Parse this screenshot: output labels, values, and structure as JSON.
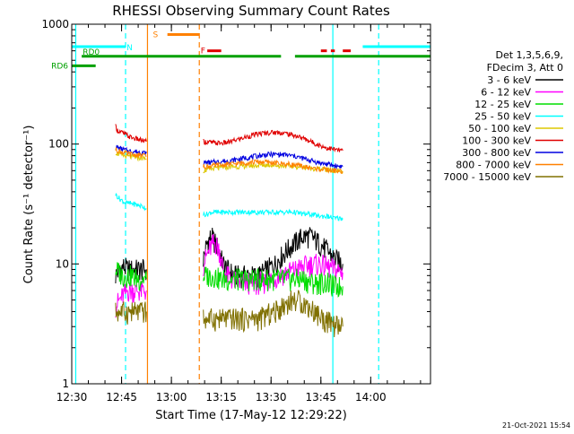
{
  "colors": {
    "background": "#ffffff",
    "axes": "#000000",
    "channels": [
      "#000000",
      "#ff00ff",
      "#00dd00",
      "#00ffff",
      "#ddc800",
      "#e00000",
      "#0000e0",
      "#ff8000",
      "#807000"
    ],
    "attenuator_flag": "#00a000",
    "n_marker": "#00ffff",
    "s_marker": "#ff8000",
    "f_marker": "#e00000",
    "date_stamp": "#000000"
  },
  "chart_data": {
    "type": "line",
    "title": "RHESSI Observing Summary Count Rates",
    "xlabel": "Start Time (17-May-12 12:29:22)",
    "ylabel": "Count Rate (s⁻¹ detector⁻¹)",
    "yscale": "log",
    "ylim": [
      1,
      1000
    ],
    "xlim": [
      12.5,
      14.3
    ],
    "xtick_values": [
      12.5,
      12.75,
      13.0,
      13.25,
      13.5,
      13.75,
      14.0
    ],
    "xtick_labels": [
      "12:30",
      "12:45",
      "13:00",
      "13:15",
      "13:30",
      "13:45",
      "14:00"
    ],
    "ytick_values": [
      1,
      10,
      100,
      1000
    ],
    "ytick_labels": [
      "1",
      "10",
      "100",
      "1000"
    ],
    "legend_header": [
      "Det 1,3,5,6,9,",
      "FDecim 3, Att 0"
    ],
    "legend_position": "right",
    "date_stamp": "21-Oct-2021 15:54",
    "flag_labels": {
      "rd0": "RD0",
      "rd6": "RD6",
      "n": "N",
      "s": "S",
      "f": "F"
    },
    "flags": {
      "rd0": {
        "y": 540,
        "segments": [
          [
            12.55,
            13.55
          ],
          [
            13.62,
            14.3
          ]
        ]
      },
      "rd6": {
        "y": 450,
        "segments": [
          [
            12.5,
            12.62
          ]
        ]
      },
      "n": {
        "y": 650,
        "segments": [
          [
            12.5,
            12.77
          ],
          [
            13.96,
            14.3
          ]
        ]
      },
      "s": {
        "y": 820,
        "segments": [
          [
            12.98,
            13.14
          ]
        ]
      },
      "f": {
        "y": 600,
        "segments": [
          [
            13.18,
            13.25
          ],
          [
            13.75,
            13.78
          ],
          [
            13.8,
            13.82
          ],
          [
            13.86,
            13.9
          ]
        ]
      }
    },
    "vlines": [
      {
        "x": 12.52,
        "style": "solid",
        "color": "#00ffff"
      },
      {
        "x": 12.77,
        "style": "dashed",
        "color": "#00ffff"
      },
      {
        "x": 12.88,
        "style": "solid",
        "color": "#ff8000"
      },
      {
        "x": 13.14,
        "style": "dashed",
        "color": "#ff8000"
      },
      {
        "x": 13.81,
        "style": "solid",
        "color": "#00ffff"
      },
      {
        "x": 14.04,
        "style": "dashed",
        "color": "#00ffff"
      }
    ],
    "series": [
      {
        "name": "3 - 6 keV",
        "color": "#000000",
        "segments": [
          {
            "x": [
              12.72,
              12.74,
              12.76,
              12.78,
              12.8,
              12.83,
              12.86,
              12.875
            ],
            "y": [
              8,
              9,
              9.5,
              9,
              9,
              9,
              9,
              9
            ]
          },
          {
            "x": [
              13.16,
              13.17,
              13.18,
              13.19,
              13.2,
              13.21,
              13.22,
              13.23,
              13.24,
              13.25,
              13.26,
              13.27,
              13.28,
              13.3,
              13.32,
              13.34,
              13.36,
              13.38,
              13.4,
              13.42,
              13.44,
              13.46,
              13.48,
              13.5,
              13.52,
              13.54,
              13.56,
              13.58,
              13.6,
              13.62,
              13.64,
              13.66,
              13.68,
              13.7,
              13.72,
              13.74,
              13.76,
              13.78,
              13.8,
              13.82,
              13.84,
              13.86
            ],
            "y": [
              11,
              13,
              15,
              16,
              17,
              16,
              15,
              14,
              13,
              11,
              10,
              9.5,
              9,
              8.5,
              8,
              8,
              8,
              8,
              8,
              8,
              8,
              8.5,
              9,
              9.5,
              10,
              11,
              12,
              13,
              14,
              15,
              16,
              17,
              17,
              17,
              16,
              15,
              14,
              13,
              12,
              11,
              10.5,
              10
            ]
          }
        ]
      },
      {
        "name": "6 - 12 keV",
        "color": "#ff00ff",
        "segments": [
          {
            "x": [
              12.72,
              12.74,
              12.76,
              12.78,
              12.8,
              12.83,
              12.86,
              12.875
            ],
            "y": [
              4.5,
              5,
              5.5,
              6,
              6,
              6,
              6,
              6
            ]
          },
          {
            "x": [
              13.16,
              13.18,
              13.2,
              13.21,
              13.22,
              13.23,
              13.24,
              13.25,
              13.26,
              13.28,
              13.3,
              13.34,
              13.38,
              13.42,
              13.46,
              13.5,
              13.54,
              13.58,
              13.62,
              13.66,
              13.7,
              13.74,
              13.78,
              13.82,
              13.86
            ],
            "y": [
              10,
              12,
              14,
              15,
              15,
              14,
              13,
              11,
              9,
              8,
              7.5,
              7,
              7,
              7,
              7,
              7.5,
              8,
              8.5,
              9,
              9.5,
              10,
              10,
              9.5,
              9,
              8.5
            ]
          }
        ]
      },
      {
        "name": "12 - 25 keV",
        "color": "#00dd00",
        "segments": [
          {
            "x": [
              12.72,
              12.74,
              12.76,
              12.78,
              12.8,
              12.83,
              12.86,
              12.875
            ],
            "y": [
              9,
              8.5,
              8,
              8,
              8,
              7.5,
              7.5,
              7.5
            ]
          },
          {
            "x": [
              13.16,
              13.18,
              13.2,
              13.22,
              13.24,
              13.26,
              13.28,
              13.3,
              13.34,
              13.38,
              13.42,
              13.46,
              13.5,
              13.54,
              13.58,
              13.62,
              13.66,
              13.7,
              13.74,
              13.78,
              13.82,
              13.86
            ],
            "y": [
              8,
              8,
              8,
              8,
              7.5,
              7.5,
              7.5,
              7.5,
              7.5,
              7.5,
              7.5,
              7.5,
              7.5,
              7.5,
              7.5,
              7.5,
              7.5,
              7,
              7,
              7,
              6.5,
              6.5
            ]
          }
        ]
      },
      {
        "name": "25 - 50 keV",
        "color": "#00ffff",
        "segments": [
          {
            "x": [
              12.72,
              12.74,
              12.76,
              12.78,
              12.8,
              12.83,
              12.86,
              12.875
            ],
            "y": [
              38,
              35,
              33,
              32,
              32,
              31,
              30,
              29
            ]
          },
          {
            "x": [
              13.16,
              13.18,
              13.2,
              13.22,
              13.24,
              13.26,
              13.28,
              13.3,
              13.34,
              13.38,
              13.42,
              13.46,
              13.5,
              13.54,
              13.58,
              13.62,
              13.66,
              13.7,
              13.74,
              13.78,
              13.82,
              13.86
            ],
            "y": [
              26,
              26,
              27,
              27,
              27,
              27,
              27,
              27,
              27,
              27,
              27,
              27,
              27,
              27,
              27,
              27,
              26,
              26,
              25,
              25,
              24,
              24
            ]
          }
        ]
      },
      {
        "name": "50 - 100 keV",
        "color": "#ddc800",
        "segments": [
          {
            "x": [
              12.72,
              12.74,
              12.76,
              12.78,
              12.8,
              12.83,
              12.86,
              12.875
            ],
            "y": [
              85,
              82,
              80,
              79,
              78,
              77,
              76,
              75
            ]
          },
          {
            "x": [
              13.16,
              13.18,
              13.2,
              13.22,
              13.24,
              13.26,
              13.28,
              13.3,
              13.34,
              13.38,
              13.42,
              13.46,
              13.5,
              13.54,
              13.58,
              13.62,
              13.66,
              13.7,
              13.74,
              13.78,
              13.82,
              13.86
            ],
            "y": [
              60,
              61,
              62,
              63,
              63,
              64,
              64,
              65,
              65,
              66,
              66,
              67,
              67,
              66,
              66,
              65,
              64,
              63,
              62,
              61,
              60,
              59
            ]
          }
        ]
      },
      {
        "name": "100 - 300 keV",
        "color": "#e00000",
        "segments": [
          {
            "x": [
              12.72,
              12.73,
              12.75,
              12.77,
              12.79,
              12.81,
              12.83,
              12.85,
              12.875
            ],
            "y": [
              140,
              130,
              125,
              120,
              115,
              112,
              110,
              107,
              105
            ]
          },
          {
            "x": [
              13.16,
              13.18,
              13.2,
              13.22,
              13.24,
              13.26,
              13.28,
              13.3,
              13.34,
              13.38,
              13.42,
              13.46,
              13.5,
              13.54,
              13.58,
              13.62,
              13.66,
              13.7,
              13.74,
              13.78,
              13.82,
              13.86
            ],
            "y": [
              105,
              104,
              103,
              102,
              102,
              102,
              103,
              105,
              110,
              115,
              120,
              123,
              125,
              125,
              122,
              118,
              112,
              105,
              98,
              93,
              90,
              88
            ]
          }
        ]
      },
      {
        "name": "300 - 800 keV",
        "color": "#0000e0",
        "segments": [
          {
            "x": [
              12.72,
              12.74,
              12.76,
              12.78,
              12.8,
              12.83,
              12.86,
              12.875
            ],
            "y": [
              95,
              92,
              90,
              88,
              87,
              86,
              85,
              84
            ]
          },
          {
            "x": [
              13.16,
              13.18,
              13.2,
              13.22,
              13.24,
              13.26,
              13.28,
              13.3,
              13.34,
              13.38,
              13.42,
              13.46,
              13.5,
              13.54,
              13.58,
              13.62,
              13.66,
              13.7,
              13.74,
              13.78,
              13.82,
              13.86
            ],
            "y": [
              70,
              70,
              70,
              71,
              71,
              72,
              72,
              73,
              75,
              77,
              79,
              81,
              82,
              82,
              81,
              79,
              76,
              73,
              70,
              68,
              66,
              65
            ]
          }
        ]
      },
      {
        "name": "800 - 7000 keV",
        "color": "#ff8000",
        "segments": [
          {
            "x": [
              12.72,
              12.74,
              12.76,
              12.78,
              12.8,
              12.83,
              12.86,
              12.875
            ],
            "y": [
              90,
              87,
              85,
              83,
              82,
              81,
              80,
              79
            ]
          },
          {
            "x": [
              13.16,
              13.18,
              13.2,
              13.22,
              13.24,
              13.26,
              13.28,
              13.3,
              13.34,
              13.38,
              13.42,
              13.46,
              13.5,
              13.54,
              13.58,
              13.62,
              13.66,
              13.7,
              13.74,
              13.78,
              13.82,
              13.86
            ],
            "y": [
              65,
              65,
              66,
              66,
              67,
              67,
              68,
              68,
              69,
              70,
              71,
              71,
              70,
              69,
              68,
              67,
              65,
              63,
              62,
              61,
              60,
              59
            ]
          }
        ]
      },
      {
        "name": "7000 - 15000 keV",
        "color": "#807000",
        "segments": [
          {
            "x": [
              12.72,
              12.74,
              12.76,
              12.78,
              12.8,
              12.83,
              12.86,
              12.875
            ],
            "y": [
              4,
              4,
              4,
              4,
              4,
              4,
              4,
              4
            ]
          },
          {
            "x": [
              13.16,
              13.2,
              13.24,
              13.28,
              13.32,
              13.36,
              13.4,
              13.44,
              13.48,
              13.52,
              13.56,
              13.6,
              13.64,
              13.68,
              13.72,
              13.76,
              13.8,
              13.84,
              13.86
            ],
            "y": [
              3.5,
              3.5,
              3.5,
              3.5,
              3.5,
              3.5,
              3.5,
              3.5,
              3.8,
              4,
              4.5,
              5,
              5,
              4.5,
              4,
              3.5,
              3.2,
              3,
              3
            ]
          }
        ]
      }
    ]
  }
}
